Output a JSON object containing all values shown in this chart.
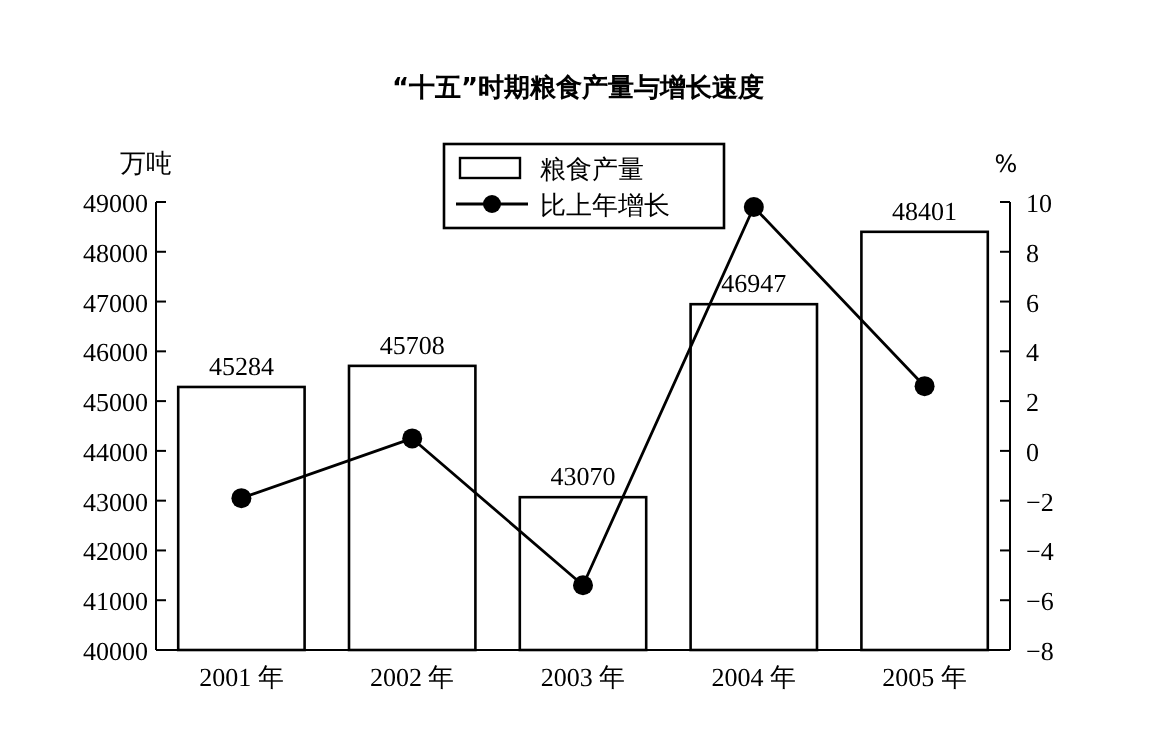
{
  "chart_data": {
    "type": "bar",
    "title": "“十五”时期粮食产量与增长速度",
    "ylabel": "万吨",
    "y2label": "%",
    "categories": [
      "2001 年",
      "2002 年",
      "2003 年",
      "2004 年",
      "2005 年"
    ],
    "series": [
      {
        "name": "粮食产量",
        "color": "#ffffff",
        "values": [
          45284,
          45708,
          43070,
          46947,
          48401
        ],
        "value_labels": [
          "45284",
          "45708",
          "43070",
          "46947",
          "48401"
        ]
      },
      {
        "name": "比上年增长",
        "type": "line",
        "axis": "y2",
        "color": "#000000",
        "marker": "circle",
        "values": [
          -1.9,
          0.5,
          -5.4,
          9.8,
          2.6
        ]
      }
    ],
    "ylim": [
      40000,
      49000
    ],
    "yticks": [
      40000,
      41000,
      42000,
      43000,
      44000,
      45000,
      46000,
      47000,
      48000,
      49000
    ],
    "y2lim": [
      -8,
      10
    ],
    "y2ticks": [
      -8,
      -6,
      -4,
      -2,
      0,
      2,
      4,
      6,
      8,
      10
    ],
    "legend": "top",
    "grid": false
  }
}
